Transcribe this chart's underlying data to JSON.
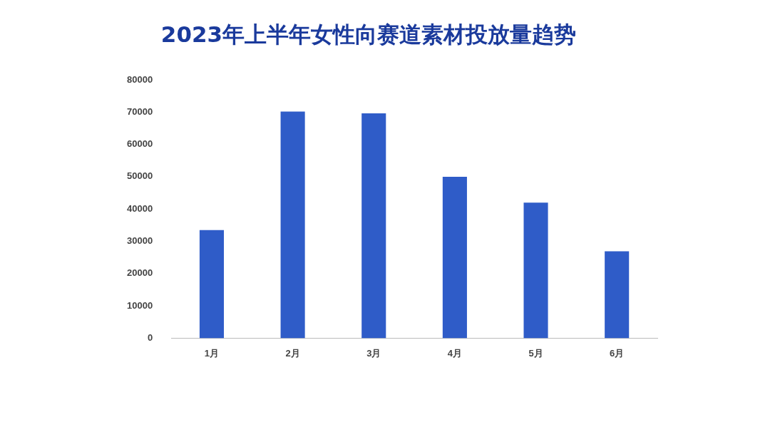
{
  "chart_data": {
    "type": "bar",
    "title": "2023年上半年女性向赛道素材投放量趋势",
    "categories": [
      "1月",
      "2月",
      "3月",
      "4月",
      "5月",
      "6月"
    ],
    "values": [
      33500,
      70200,
      69600,
      50000,
      42000,
      26900
    ],
    "color": "#2f5cc8",
    "ylim": [
      0,
      80000
    ],
    "yticks": [
      0,
      10000,
      20000,
      30000,
      40000,
      50000,
      60000,
      70000,
      80000
    ],
    "grid": false,
    "legend": false
  }
}
